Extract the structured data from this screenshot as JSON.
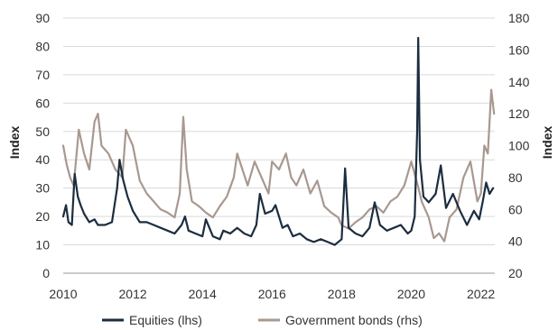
{
  "chart_data": {
    "type": "line",
    "xlabel": "",
    "ylabel_left": "Index",
    "ylabel_right": "Index",
    "x_ticks": [
      "2010",
      "2012",
      "2014",
      "2016",
      "2018",
      "2020",
      "2022"
    ],
    "xlim": [
      2010.0,
      2022.4
    ],
    "ylim_left": [
      0,
      90
    ],
    "ylim_right": [
      20,
      180
    ],
    "y_ticks_left": [
      0,
      10,
      20,
      30,
      40,
      50,
      60,
      70,
      80,
      90
    ],
    "y_ticks_right": [
      20,
      40,
      60,
      80,
      100,
      120,
      140,
      160,
      180
    ],
    "grid": "horizontal",
    "legend_position": "bottom",
    "series": [
      {
        "name": "Equities (lhs)",
        "axis": "left",
        "color": "#1c2d3f",
        "x": [
          2010.0,
          2010.08,
          2010.15,
          2010.25,
          2010.33,
          2010.42,
          2010.5,
          2010.6,
          2010.75,
          2010.9,
          2011.0,
          2011.2,
          2011.4,
          2011.55,
          2011.62,
          2011.72,
          2011.85,
          2012.0,
          2012.2,
          2012.4,
          2012.6,
          2012.8,
          2013.0,
          2013.2,
          2013.4,
          2013.5,
          2013.6,
          2013.8,
          2014.0,
          2014.1,
          2014.3,
          2014.5,
          2014.6,
          2014.8,
          2015.0,
          2015.2,
          2015.4,
          2015.55,
          2015.65,
          2015.8,
          2016.0,
          2016.1,
          2016.3,
          2016.45,
          2016.6,
          2016.8,
          2017.0,
          2017.2,
          2017.4,
          2017.6,
          2017.8,
          2018.0,
          2018.1,
          2018.2,
          2018.4,
          2018.6,
          2018.8,
          2018.95,
          2019.1,
          2019.3,
          2019.5,
          2019.7,
          2019.9,
          2020.0,
          2020.1,
          2020.17,
          2020.2,
          2020.25,
          2020.35,
          2020.5,
          2020.7,
          2020.85,
          2021.0,
          2021.2,
          2021.4,
          2021.6,
          2021.8,
          2021.95,
          2022.05,
          2022.15,
          2022.25,
          2022.35
        ],
        "values": [
          20,
          24,
          18,
          17,
          35,
          27,
          24,
          21,
          18,
          19,
          17,
          17,
          18,
          30,
          40,
          33,
          27,
          22,
          18,
          18,
          17,
          16,
          15,
          14,
          17,
          20,
          15,
          14,
          13,
          19,
          13,
          12,
          15,
          14,
          16,
          14,
          13,
          17,
          28,
          21,
          22,
          24,
          16,
          17,
          13,
          14,
          12,
          11,
          12,
          11,
          10,
          12,
          37,
          16,
          14,
          13,
          16,
          25,
          17,
          15,
          16,
          17,
          14,
          15,
          20,
          50,
          83,
          40,
          27,
          25,
          28,
          38,
          23,
          28,
          22,
          17,
          22,
          19,
          25,
          32,
          28,
          30
        ]
      },
      {
        "name": "Government bonds (rhs)",
        "axis": "right",
        "color": "#a89890",
        "x": [
          2010.0,
          2010.1,
          2010.2,
          2010.3,
          2010.45,
          2010.6,
          2010.75,
          2010.9,
          2011.0,
          2011.1,
          2011.3,
          2011.5,
          2011.7,
          2011.8,
          2011.9,
          2012.0,
          2012.2,
          2012.4,
          2012.6,
          2012.8,
          2013.0,
          2013.2,
          2013.35,
          2013.45,
          2013.55,
          2013.7,
          2013.9,
          2014.1,
          2014.3,
          2014.5,
          2014.7,
          2014.9,
          2015.0,
          2015.15,
          2015.3,
          2015.5,
          2015.7,
          2015.9,
          2016.0,
          2016.2,
          2016.4,
          2016.55,
          2016.7,
          2016.9,
          2017.1,
          2017.3,
          2017.5,
          2017.7,
          2017.9,
          2018.0,
          2018.2,
          2018.4,
          2018.6,
          2018.8,
          2019.0,
          2019.2,
          2019.4,
          2019.6,
          2019.8,
          2020.0,
          2020.15,
          2020.2,
          2020.3,
          2020.5,
          2020.65,
          2020.8,
          2020.95,
          2021.1,
          2021.3,
          2021.5,
          2021.7,
          2021.9,
          2022.0,
          2022.1,
          2022.2,
          2022.3,
          2022.38
        ],
        "values": [
          100,
          88,
          80,
          75,
          110,
          95,
          85,
          115,
          120,
          100,
          95,
          85,
          80,
          110,
          105,
          100,
          78,
          70,
          65,
          60,
          58,
          55,
          70,
          118,
          85,
          65,
          62,
          58,
          55,
          62,
          68,
          80,
          95,
          85,
          75,
          90,
          80,
          70,
          90,
          85,
          95,
          80,
          75,
          85,
          70,
          78,
          62,
          58,
          55,
          50,
          48,
          52,
          55,
          60,
          62,
          58,
          65,
          68,
          75,
          90,
          78,
          74,
          65,
          55,
          42,
          45,
          40,
          55,
          60,
          80,
          90,
          65,
          70,
          100,
          95,
          135,
          120
        ]
      }
    ]
  }
}
